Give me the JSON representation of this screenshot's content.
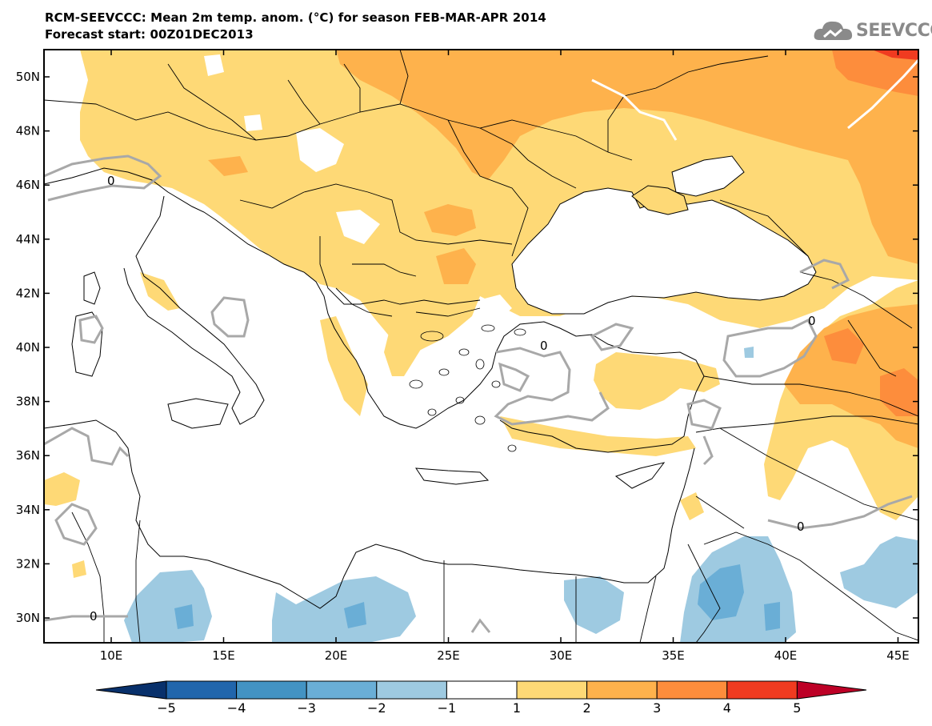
{
  "title": "RCM-SEEVCCC: Mean 2m temp. anom. (°C) for season FEB-MAR-APR 2014",
  "subtitle": "Forecast start: 00Z01DEC2013",
  "logo_text": "SEEVCCC",
  "map": {
    "lon_ticks": [
      "10E",
      "15E",
      "20E",
      "25E",
      "30E",
      "35E",
      "40E",
      "45E"
    ],
    "lat_ticks": [
      "50N",
      "48N",
      "46N",
      "44N",
      "42N",
      "40N",
      "38N",
      "36N",
      "34N",
      "32N",
      "30N"
    ],
    "contour_label": "0"
  },
  "colorbar": {
    "labels": [
      "−5",
      "−4",
      "−3",
      "−2",
      "−1",
      "1",
      "2",
      "3",
      "4",
      "5"
    ],
    "colors": [
      "#08306b",
      "#2166ac",
      "#4393c3",
      "#6aaed6",
      "#9ecae1",
      "#ffffff",
      "#fed976",
      "#feb24c",
      "#fd8d3c",
      "#f03b20",
      "#bd0026"
    ]
  }
}
